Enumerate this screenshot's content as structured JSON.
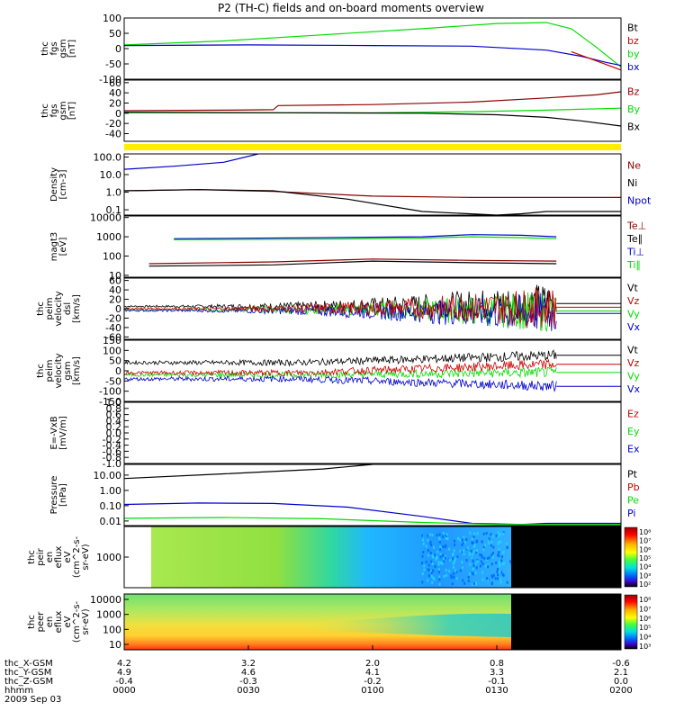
{
  "title": "P2 (TH-C) fields and on-board moments overview",
  "colors": {
    "red": "#cc0000",
    "green": "#00dd00",
    "blue": "#0000cc",
    "black": "#000000",
    "yellow": "#ffee00",
    "darkred": "#8b0000"
  },
  "chart_data": [
    {
      "type": "line",
      "ylabel_lines": [
        "thc",
        "fgs",
        "gsm",
        "[nT]"
      ],
      "yticks": [
        100,
        50,
        0,
        -50,
        -100
      ],
      "ylim": [
        -100,
        100
      ],
      "legend": [
        {
          "label": "Bt",
          "color": "black"
        },
        {
          "label": "bz",
          "color": "red"
        },
        {
          "label": "by",
          "color": "green"
        },
        {
          "label": "bx",
          "color": "blue"
        }
      ],
      "series": [
        {
          "name": "by",
          "color": "green",
          "x": [
            0,
            0.2,
            0.4,
            0.6,
            0.75,
            0.85,
            0.9,
            0.95,
            1.0
          ],
          "y": [
            12,
            25,
            45,
            65,
            82,
            85,
            65,
            5,
            -60
          ]
        },
        {
          "name": "bx",
          "color": "blue",
          "x": [
            0,
            0.25,
            0.5,
            0.7,
            0.85,
            0.92,
            0.97,
            1.0
          ],
          "y": [
            10,
            12,
            10,
            8,
            -5,
            -25,
            -45,
            -55
          ]
        },
        {
          "name": "bz",
          "color": "red",
          "x": [
            0.9,
            0.95,
            1.0
          ],
          "y": [
            -10,
            -40,
            -70
          ]
        }
      ]
    },
    {
      "type": "line",
      "ylabel_lines": [
        "thc",
        "fgs",
        "gsm",
        "[nT]"
      ],
      "yticks": [
        60,
        40,
        20,
        0,
        -20,
        -40
      ],
      "ylim": [
        -55,
        65
      ],
      "legend": [
        {
          "label": "Bz",
          "color": "darkred"
        },
        {
          "label": "By",
          "color": "green"
        },
        {
          "label": "Bx",
          "color": "black"
        }
      ],
      "series": [
        {
          "name": "Bz",
          "color": "darkred",
          "x": [
            0,
            0.2,
            0.3,
            0.31,
            0.5,
            0.7,
            0.85,
            0.95,
            1.0
          ],
          "y": [
            5,
            6,
            7,
            15,
            17,
            22,
            30,
            36,
            42
          ]
        },
        {
          "name": "By",
          "color": "green",
          "x": [
            0,
            0.3,
            0.5,
            0.7,
            0.85,
            1.0
          ],
          "y": [
            1,
            1,
            1,
            3,
            6,
            10
          ]
        },
        {
          "name": "Bx",
          "color": "black",
          "x": [
            0,
            0.3,
            0.6,
            0.75,
            0.85,
            0.92,
            1.0
          ],
          "y": [
            2,
            1,
            0,
            -3,
            -8,
            -15,
            -25
          ]
        }
      ]
    },
    {
      "type": "line",
      "ylabel_lines": [
        "Density",
        "[cm-3]"
      ],
      "yscale": "log",
      "yticks_labels": [
        "100.0",
        "10.0",
        "1.0",
        "0.1"
      ],
      "ylim": [
        0.05,
        150
      ],
      "legend": [
        {
          "label": "Ne",
          "color": "darkred"
        },
        {
          "label": "Ni",
          "color": "black"
        },
        {
          "label": "Npot",
          "color": "blue"
        }
      ],
      "series": [
        {
          "name": "Npot",
          "color": "blue",
          "x": [
            0,
            0.1,
            0.2,
            0.27
          ],
          "y": [
            20,
            30,
            50,
            150
          ]
        },
        {
          "name": "Ne",
          "color": "darkred",
          "x": [
            0,
            0.15,
            0.3,
            0.5,
            0.7,
            0.85,
            1.0
          ],
          "y": [
            1.2,
            1.4,
            1.1,
            0.6,
            0.5,
            0.5,
            0.5
          ]
        },
        {
          "name": "Ni",
          "color": "black",
          "x": [
            0,
            0.15,
            0.3,
            0.45,
            0.6,
            0.75,
            0.8,
            0.85,
            1.0
          ],
          "y": [
            1.2,
            1.4,
            1.2,
            0.4,
            0.08,
            0.05,
            0.06,
            0.08,
            0.08
          ]
        }
      ]
    },
    {
      "type": "line",
      "ylabel_lines": [
        "magt3",
        "[eV]"
      ],
      "yscale": "log",
      "yticks_labels": [
        "10000",
        "1000",
        "100",
        "10"
      ],
      "ylim": [
        8,
        12000
      ],
      "legend": [
        {
          "label": "Te⊥",
          "color": "darkred"
        },
        {
          "label": "Te∥",
          "color": "black"
        },
        {
          "label": "Ti⊥",
          "color": "blue"
        },
        {
          "label": "Ti∥",
          "color": "green"
        }
      ],
      "series": [
        {
          "name": "Ti⊥",
          "color": "blue",
          "x": [
            0.1,
            0.4,
            0.6,
            0.7,
            0.8,
            0.87
          ],
          "y": [
            800,
            900,
            1000,
            1300,
            1200,
            1000
          ]
        },
        {
          "name": "Ti∥",
          "color": "green",
          "x": [
            0.1,
            0.4,
            0.6,
            0.7,
            0.8,
            0.87
          ],
          "y": [
            700,
            750,
            850,
            1000,
            900,
            800
          ]
        },
        {
          "name": "Te⊥",
          "color": "darkred",
          "x": [
            0.05,
            0.3,
            0.5,
            0.7,
            0.87
          ],
          "y": [
            40,
            50,
            70,
            60,
            55
          ]
        },
        {
          "name": "Te∥",
          "color": "black",
          "x": [
            0.05,
            0.3,
            0.5,
            0.7,
            0.87
          ],
          "y": [
            30,
            35,
            55,
            45,
            40
          ]
        }
      ]
    },
    {
      "type": "line",
      "ylabel_lines": [
        "thc",
        "peim",
        "velocity",
        "dsl",
        "[km/s]"
      ],
      "yticks": [
        60,
        40,
        20,
        0,
        -20,
        -40,
        -60
      ],
      "ylim": [
        -65,
        65
      ],
      "legend": [
        {
          "label": "Vt",
          "color": "black"
        },
        {
          "label": "Vz",
          "color": "red"
        },
        {
          "label": "Vy",
          "color": "green"
        },
        {
          "label": "Vx",
          "color": "blue"
        }
      ]
    },
    {
      "type": "line",
      "ylabel_lines": [
        "thc",
        "peim",
        "velocity",
        "gsm",
        "[km/s]"
      ],
      "yticks": [
        150,
        100,
        50,
        0,
        -50,
        -100,
        -150
      ],
      "ylim": [
        -150,
        150
      ],
      "legend": [
        {
          "label": "Vt",
          "color": "black"
        },
        {
          "label": "Vz",
          "color": "red"
        },
        {
          "label": "Vy",
          "color": "green"
        },
        {
          "label": "Vx",
          "color": "blue"
        }
      ]
    },
    {
      "type": "line",
      "ylabel_lines": [
        "E=-VxB",
        "[mV/m]"
      ],
      "yticks_labels": [
        "1.0",
        "0.8",
        "0.6",
        "0.4",
        "0.2",
        "0.0",
        "-0.2",
        "-0.4",
        "-0.6",
        "-0.8",
        "-1.0"
      ],
      "ylim": [
        -1,
        1
      ],
      "legend": [
        {
          "label": "Ez",
          "color": "red"
        },
        {
          "label": "Ey",
          "color": "green"
        },
        {
          "label": "Ex",
          "color": "blue"
        }
      ]
    },
    {
      "type": "line",
      "ylabel_lines": [
        "Pressure",
        "[nPa]"
      ],
      "yscale": "log",
      "yticks_labels": [
        "10.00",
        "1.00",
        "0.10",
        "0.01"
      ],
      "ylim": [
        0.005,
        50
      ],
      "legend": [
        {
          "label": "Pt",
          "color": "black"
        },
        {
          "label": "Pb",
          "color": "red"
        },
        {
          "label": "Pe",
          "color": "green"
        },
        {
          "label": "Pi",
          "color": "blue"
        }
      ],
      "series": [
        {
          "name": "Pt",
          "color": "black",
          "x": [
            0,
            0.2,
            0.4,
            0.5
          ],
          "y": [
            6,
            12,
            25,
            50
          ]
        },
        {
          "name": "Pi",
          "color": "blue",
          "x": [
            0,
            0.15,
            0.3,
            0.45,
            0.6,
            0.7,
            0.8,
            0.85,
            1.0
          ],
          "y": [
            0.12,
            0.15,
            0.14,
            0.08,
            0.02,
            0.007,
            0.006,
            0.007,
            0.007
          ]
        },
        {
          "name": "Pe",
          "color": "green",
          "x": [
            0,
            0.2,
            0.4,
            0.6,
            0.75,
            0.85,
            1.0
          ],
          "y": [
            0.015,
            0.017,
            0.014,
            0.008,
            0.006,
            0.006,
            0.006
          ]
        }
      ]
    },
    {
      "type": "heatmap",
      "ylabel_lines": [
        "thc",
        "peir",
        "en",
        "eflux",
        "eV",
        "(cm^2-s-",
        "sr-eV)"
      ],
      "yticks_labels": [
        "1000"
      ],
      "colorbar_labels": [
        "10⁸",
        "10⁷",
        "10⁶",
        "10⁵",
        "10⁴",
        "10³",
        "10²"
      ]
    },
    {
      "type": "heatmap",
      "ylabel_lines": [
        "thc",
        "peer",
        "en",
        "eflux",
        "eV",
        "(cm^2-s-",
        "sr-eV)"
      ],
      "yticks_labels": [
        "10000",
        "1000",
        "100",
        "10"
      ],
      "colorbar_labels": [
        "10⁸",
        "10⁷",
        "10⁶",
        "10⁵",
        "10⁴",
        "10³"
      ]
    }
  ],
  "xaxis": {
    "rows": [
      {
        "label": "thc_X-GSM",
        "values": [
          "4.2",
          "3.2",
          "2.0",
          "0.8",
          "-0.6"
        ]
      },
      {
        "label": "thc_Y-GSM",
        "values": [
          "4.9",
          "4.6",
          "4.1",
          "3.3",
          "2.1"
        ]
      },
      {
        "label": "thc_Z-GSM",
        "values": [
          "-0.4",
          "-0.3",
          "-0.2",
          "-0.1",
          "0.0"
        ]
      },
      {
        "label": "hhmm",
        "values": [
          "0000",
          "0030",
          "0100",
          "0130",
          "0200"
        ]
      }
    ],
    "date": "2009 Sep 03"
  }
}
